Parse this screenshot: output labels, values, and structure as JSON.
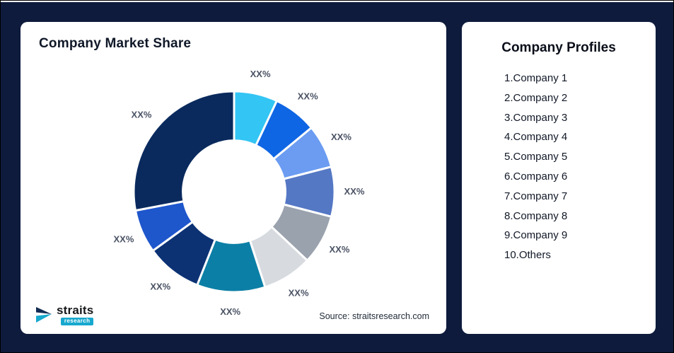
{
  "page": {
    "background": "#0E1B3C",
    "card_background": "#FFFFFF"
  },
  "left_card": {
    "title": "Company Market Share",
    "source": "Source: straitsresearch.com",
    "logo": {
      "name": "straits",
      "sub": "research"
    }
  },
  "right_card": {
    "title": "Company Profiles",
    "items": [
      "1.Company 1",
      "2.Company 2",
      "3.Company 3",
      "4.Company 4",
      "5.Company 5",
      "6.Company 6",
      "7.Company 7",
      "8.Company 8",
      "9.Company 9",
      "10.Others"
    ]
  },
  "chart_data": {
    "type": "pie",
    "subtype": "donut",
    "title": "Company Market Share",
    "legend": "none",
    "start_angle_deg": 0,
    "clockwise": true,
    "inner_radius_ratio": 0.51,
    "labels": [
      "XX%",
      "XX%",
      "XX%",
      "XX%",
      "XX%",
      "XX%",
      "XX%",
      "XX%",
      "XX%",
      "XX%"
    ],
    "values_pct_estimated": [
      7,
      7,
      7,
      8,
      8,
      8,
      11,
      9,
      7,
      28
    ],
    "colors": [
      "#33C5F3",
      "#0F66E4",
      "#6B9CF2",
      "#5578C4",
      "#9AA2AE",
      "#D7DBE0",
      "#0C7FA6",
      "#0C3274",
      "#1E56CC",
      "#0A2A5E"
    ],
    "slice_stroke": "#FFFFFF",
    "label_color": "#4A5264"
  }
}
